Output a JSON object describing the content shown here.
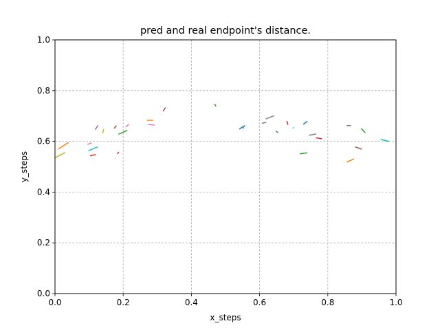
{
  "chart_data": {
    "type": "line",
    "title": "pred and real endpoint's distance.",
    "xlabel": "x_steps",
    "ylabel": "y_steps",
    "xlim": [
      0.0,
      1.0
    ],
    "ylim": [
      0.0,
      1.0
    ],
    "xticks": [
      "0.0",
      "0.2",
      "0.4",
      "0.6",
      "0.8",
      "1.0"
    ],
    "yticks": [
      "0.0",
      "0.2",
      "0.4",
      "0.6",
      "0.8",
      "1.0"
    ],
    "grid": true,
    "grid_style": "dashed",
    "legend": "none",
    "series": [
      {
        "color": "#ff7f0e",
        "x": [
          0.01,
          0.04
        ],
        "y": [
          0.57,
          0.596
        ]
      },
      {
        "color": "#bcbd22",
        "x": [
          0.0,
          0.03
        ],
        "y": [
          0.535,
          0.556
        ]
      },
      {
        "color": "#e377c2",
        "x": [
          0.095,
          0.108
        ],
        "y": [
          0.588,
          0.594
        ]
      },
      {
        "color": "#17becf",
        "x": [
          0.098,
          0.125
        ],
        "y": [
          0.563,
          0.578
        ]
      },
      {
        "color": "#d62728",
        "x": [
          0.103,
          0.12
        ],
        "y": [
          0.543,
          0.548
        ]
      },
      {
        "color": "#9467bd",
        "x": [
          0.118,
          0.126
        ],
        "y": [
          0.646,
          0.663
        ]
      },
      {
        "color": "#bcbd22",
        "x": [
          0.14,
          0.143
        ],
        "y": [
          0.632,
          0.648
        ]
      },
      {
        "color": "#8c564b",
        "x": [
          0.174,
          0.18
        ],
        "y": [
          0.651,
          0.663
        ]
      },
      {
        "color": "#2ca02c",
        "x": [
          0.186,
          0.212
        ],
        "y": [
          0.628,
          0.643
        ]
      },
      {
        "color": "#e377c2",
        "x": [
          0.207,
          0.217
        ],
        "y": [
          0.657,
          0.667
        ]
      },
      {
        "color": "#d62728",
        "x": [
          0.183,
          0.187
        ],
        "y": [
          0.55,
          0.558
        ]
      },
      {
        "color": "#ff7f0e",
        "x": [
          0.27,
          0.288
        ],
        "y": [
          0.683,
          0.683
        ]
      },
      {
        "color": "#e377c2",
        "x": [
          0.272,
          0.293
        ],
        "y": [
          0.667,
          0.664
        ]
      },
      {
        "color": "#8c564b",
        "x": [
          0.317,
          0.324
        ],
        "y": [
          0.719,
          0.733
        ]
      },
      {
        "color": "#2ca02c",
        "x": [
          0.468,
          0.472
        ],
        "y": [
          0.748,
          0.738
        ]
      },
      {
        "color": "#1f77b4",
        "x": [
          0.54,
          0.557
        ],
        "y": [
          0.648,
          0.662
        ]
      },
      {
        "color": "#17becf",
        "x": [
          0.552,
          0.554
        ],
        "y": [
          0.65,
          0.66
        ]
      },
      {
        "color": "#7f7f7f",
        "x": [
          0.607,
          0.62
        ],
        "y": [
          0.671,
          0.675
        ]
      },
      {
        "color": "#7f7f7f",
        "x": [
          0.618,
          0.643
        ],
        "y": [
          0.688,
          0.701
        ]
      },
      {
        "color": "#1f77b4",
        "x": [
          0.648,
          0.654
        ],
        "y": [
          0.64,
          0.635
        ]
      },
      {
        "color": "#d62728",
        "x": [
          0.68,
          0.683
        ],
        "y": [
          0.68,
          0.665
        ]
      },
      {
        "color": "#17becf",
        "x": [
          0.697,
          0.7
        ],
        "y": [
          0.654,
          0.652
        ]
      },
      {
        "color": "#1f77b4",
        "x": [
          0.728,
          0.74
        ],
        "y": [
          0.667,
          0.679
        ]
      },
      {
        "color": "#2ca02c",
        "x": [
          0.718,
          0.74
        ],
        "y": [
          0.551,
          0.555
        ]
      },
      {
        "color": "#7f7f7f",
        "x": [
          0.745,
          0.766
        ],
        "y": [
          0.624,
          0.629
        ]
      },
      {
        "color": "#d62728",
        "x": [
          0.765,
          0.783
        ],
        "y": [
          0.614,
          0.61
        ]
      },
      {
        "color": "#7f7f7f",
        "x": [
          0.855,
          0.868
        ],
        "y": [
          0.662,
          0.662
        ]
      },
      {
        "color": "#ff7f0e",
        "x": [
          0.855,
          0.877
        ],
        "y": [
          0.518,
          0.531
        ]
      },
      {
        "color": "#8c564b",
        "x": [
          0.88,
          0.9
        ],
        "y": [
          0.578,
          0.569
        ]
      },
      {
        "color": "#2ca02c",
        "x": [
          0.898,
          0.91
        ],
        "y": [
          0.651,
          0.634
        ]
      },
      {
        "color": "#17becf",
        "x": [
          0.955,
          0.972
        ],
        "y": [
          0.608,
          0.602
        ]
      },
      {
        "color": "#17becf",
        "x": [
          0.965,
          0.98
        ],
        "y": [
          0.604,
          0.6
        ]
      }
    ]
  }
}
